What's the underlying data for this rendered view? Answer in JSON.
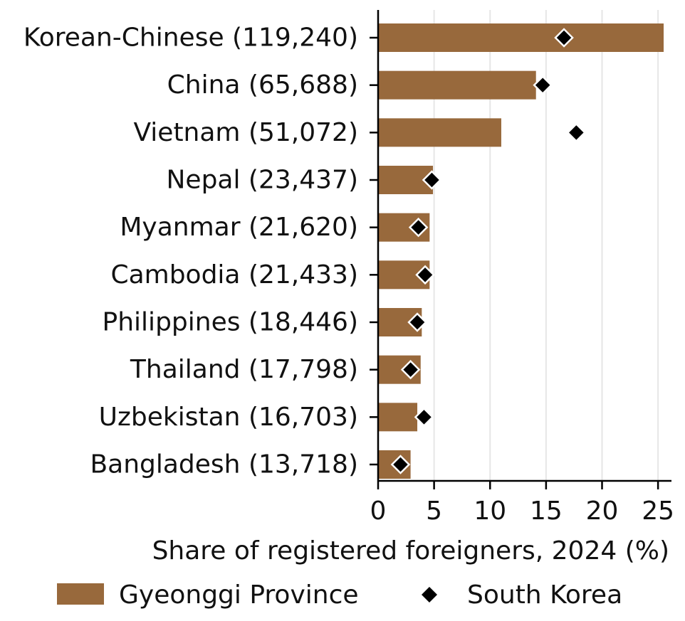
{
  "chart_data": {
    "type": "bar",
    "orientation": "horizontal",
    "categories": [
      "Korean-Chinese (119,240)",
      "China (65,688)",
      "Vietnam (51,072)",
      "Nepal (23,437)",
      "Myanmar (21,620)",
      "Cambodia (21,433)",
      "Philippines (18,446)",
      "Thailand (17,798)",
      "Uzbekistan (16,703)",
      "Bangladesh (13,718)"
    ],
    "series": [
      {
        "name": "Gyeonggi Province",
        "kind": "bar",
        "values": [
          25.5,
          14.1,
          11.0,
          4.9,
          4.6,
          4.6,
          3.9,
          3.8,
          3.5,
          2.9
        ]
      },
      {
        "name": "South Korea",
        "kind": "marker",
        "values": [
          16.6,
          14.7,
          17.7,
          4.8,
          3.6,
          4.2,
          3.5,
          2.9,
          4.1,
          2.0
        ]
      }
    ],
    "xlabel": "Share of registered foreigners, 2024 (%)",
    "ylabel": "",
    "xlim": [
      0,
      26.2
    ],
    "xticks": [
      0,
      5,
      10,
      15,
      20,
      25
    ],
    "grid": "vertical",
    "legend_position": "bottom",
    "colors": {
      "bar": "#98693c",
      "marker": "#000000",
      "marker_edge": "#ffffff",
      "grid": "#e6e6e6",
      "axis": "#000000"
    }
  }
}
